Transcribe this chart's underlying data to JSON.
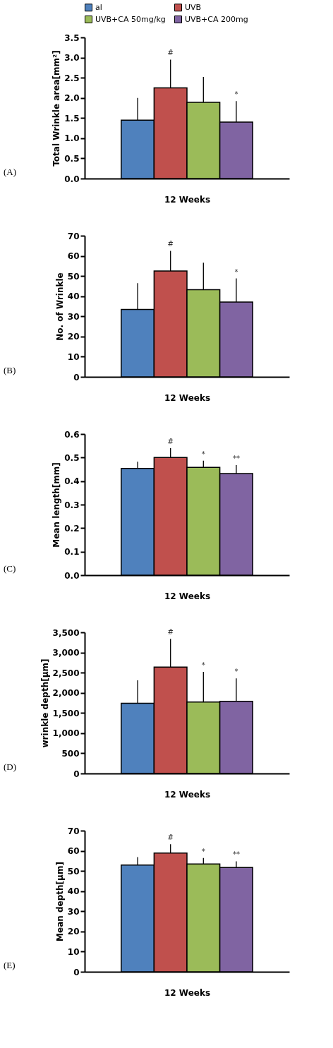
{
  "chart_data": [
    {
      "type": "bar",
      "categories": [
        null
      ],
      "xlabel": "12 Weeks",
      "ylabel": "Total Wrinkle area[mm²]",
      "ylim": [
        0,
        3.5
      ],
      "yticks": [
        {
          "value": 0,
          "label": "0.0"
        },
        0.5,
        {
          "value": 1,
          "label": "1.0"
        },
        1.5,
        {
          "value": 2,
          "label": "2.0"
        },
        2.5,
        {
          "value": 3,
          "label": "3.0"
        },
        3.5
      ],
      "legend": "top",
      "grid": false,
      "series": [
        {
          "name": "al",
          "color": "#4f81bd",
          "values": [
            1.45
          ],
          "errors": [
            [
              1.45,
              2.0
            ]
          ]
        },
        {
          "name": "UVB",
          "color": "#c0504d",
          "values": [
            2.25
          ],
          "errors": [
            [
              2.25,
              2.95
            ]
          ]
        },
        {
          "name": "UVB+CA 50mg/kg",
          "color": "#9bbb59",
          "values": [
            1.89
          ],
          "errors": [
            [
              1.89,
              2.52
            ]
          ]
        },
        {
          "name": "UVB+CA 200mg",
          "color": "#8064a2",
          "values": [
            1.4
          ],
          "errors": [
            [
              1.4,
              1.92
            ]
          ]
        }
      ],
      "annotations": [
        {
          "text": "#",
          "y": 2.95
        },
        {
          "text": "*",
          "y": 1.92
        },
        "(A)"
      ]
    },
    {
      "type": "bar",
      "categories": [
        null
      ],
      "xlabel": "12 Weeks",
      "ylabel": "No. of Wrinkle",
      "ylim": [
        0,
        70
      ],
      "yticks": [
        0,
        10,
        20,
        30,
        40,
        50,
        60,
        70
      ],
      "grid": false,
      "series": [
        {
          "color": "#4f81bd",
          "values": [
            33.4
          ],
          "errors": [
            [
              33.4,
              46.5
            ]
          ]
        },
        {
          "color": "#c0504d",
          "values": [
            52.5
          ],
          "errors": [
            [
              52.5,
              62.5
            ]
          ]
        },
        {
          "color": "#9bbb59",
          "values": [
            43.2
          ],
          "errors": [
            [
              43.2,
              56.6
            ]
          ]
        },
        {
          "color": "#8064a2",
          "values": [
            37.1
          ],
          "errors": [
            [
              37.1,
              48.8
            ]
          ]
        }
      ],
      "annotations": [
        {
          "text": "#",
          "y": 62.5
        },
        {
          "text": "*",
          "y": 48.8
        },
        "(B)"
      ]
    },
    {
      "type": "bar",
      "categories": [
        null
      ],
      "xlabel": "12 Weeks",
      "ylabel": "Mean length[mm]",
      "ylim": [
        0,
        0.6
      ],
      "yticks": [
        {
          "value": 0,
          "label": "0.0"
        },
        0.1,
        0.2,
        0.3,
        0.4,
        0.5,
        0.6
      ],
      "grid": false,
      "series": [
        {
          "color": "#4f81bd",
          "values": [
            0.454
          ],
          "errors": [
            [
              0.454,
              0.482
            ]
          ]
        },
        {
          "color": "#c0504d",
          "values": [
            0.5
          ],
          "errors": [
            [
              0.5,
              0.54
            ]
          ]
        },
        {
          "color": "#9bbb59",
          "values": [
            0.458
          ],
          "errors": [
            [
              0.458,
              0.487
            ]
          ]
        },
        {
          "color": "#8064a2",
          "values": [
            0.432
          ],
          "errors": [
            [
              0.432,
              0.468
            ]
          ]
        }
      ],
      "annotations": [
        {
          "text": "#",
          "y": 0.54
        },
        {
          "text": "*",
          "y": 0.487
        },
        {
          "text": "**",
          "y": 0.468
        },
        "(C)"
      ]
    },
    {
      "type": "bar",
      "categories": [
        null
      ],
      "xlabel": "12 Weeks",
      "ylabel": "wrinkle depth[μm]",
      "ylim": [
        0,
        3500
      ],
      "yticks": [
        0,
        500,
        {
          "value": 1000,
          "label": "1,000"
        },
        {
          "value": 1500,
          "label": "1,500"
        },
        {
          "value": 2000,
          "label": "2,000"
        },
        {
          "value": 2500,
          "label": "2,500"
        },
        {
          "value": 3000,
          "label": "3,000"
        },
        {
          "value": 3500,
          "label": "3,500"
        }
      ],
      "grid": false,
      "series": [
        {
          "color": "#4f81bd",
          "values": [
            1740
          ],
          "errors": [
            [
              1740,
              2310
            ]
          ]
        },
        {
          "color": "#c0504d",
          "values": [
            2640
          ],
          "errors": [
            [
              2640,
              3340
            ]
          ]
        },
        {
          "color": "#9bbb59",
          "values": [
            1770
          ],
          "errors": [
            [
              1770,
              2520
            ]
          ]
        },
        {
          "color": "#8064a2",
          "values": [
            1790
          ],
          "errors": [
            [
              1790,
              2360
            ]
          ]
        }
      ],
      "annotations": [
        {
          "text": "#",
          "y": 3340
        },
        {
          "text": "*",
          "y": 2520
        },
        {
          "text": "*",
          "y": 2360
        },
        "(D)"
      ]
    },
    {
      "type": "bar",
      "categories": [
        null
      ],
      "xlabel": "12 Weeks",
      "ylabel": "Mean depth[μm]",
      "ylim": [
        0,
        70
      ],
      "yticks": [
        0,
        10,
        20,
        30,
        40,
        50,
        60,
        70
      ],
      "grid": false,
      "series": [
        {
          "color": "#4f81bd",
          "values": [
            52.9
          ],
          "errors": [
            [
              52.9,
              56.9
            ]
          ]
        },
        {
          "color": "#c0504d",
          "values": [
            58.9
          ],
          "errors": [
            [
              58.9,
              63.3
            ]
          ]
        },
        {
          "color": "#9bbb59",
          "values": [
            53.5
          ],
          "errors": [
            [
              53.5,
              56.4
            ]
          ]
        },
        {
          "color": "#8064a2",
          "values": [
            51.7
          ],
          "errors": [
            [
              51.7,
              54.8
            ]
          ]
        }
      ],
      "annotations": [
        {
          "text": "#",
          "y": 63.3
        },
        {
          "text": "*",
          "y": 56.4
        },
        {
          "text": "**",
          "y": 54.8
        },
        "(E)"
      ]
    }
  ]
}
